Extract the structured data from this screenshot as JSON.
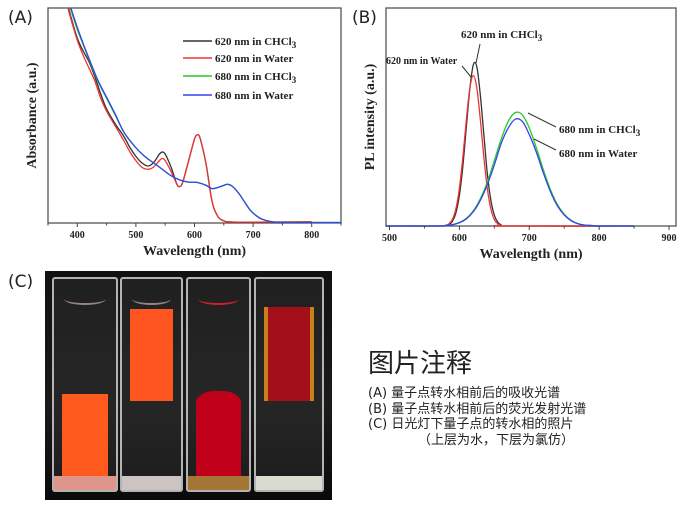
{
  "panels": {
    "a_label": "(A)",
    "b_label": "(B)",
    "c_label": "(C)"
  },
  "chart_data": [
    {
      "type": "line",
      "panel": "(A)",
      "xlabel": "Wavelength (nm)",
      "ylabel": "Absorbance (a.u.)",
      "xlim": [
        350,
        850
      ],
      "ylim": [
        0,
        1
      ],
      "xticks": [
        400,
        500,
        600,
        700,
        800
      ],
      "yticks_labeled": false,
      "grid": false,
      "legend_position": "top-right",
      "series": [
        {
          "name": "620 nm in CHCl",
          "name_sub": "3",
          "color": "#333333",
          "points": [
            [
              385,
              1.0
            ],
            [
              390,
              0.95
            ],
            [
              400,
              0.86
            ],
            [
              410,
              0.8
            ],
            [
              420,
              0.75
            ],
            [
              430,
              0.68
            ],
            [
              440,
              0.6
            ],
            [
              450,
              0.53
            ],
            [
              465,
              0.46
            ],
            [
              480,
              0.4
            ],
            [
              490,
              0.35
            ],
            [
              500,
              0.31
            ],
            [
              510,
              0.28
            ],
            [
              520,
              0.265
            ],
            [
              530,
              0.28
            ],
            [
              540,
              0.32
            ],
            [
              545,
              0.33
            ],
            [
              550,
              0.32
            ],
            [
              560,
              0.26
            ],
            [
              570,
              0.18
            ],
            [
              575,
              0.17
            ],
            [
              580,
              0.19
            ],
            [
              590,
              0.29
            ],
            [
              600,
              0.39
            ],
            [
              605,
              0.41
            ],
            [
              610,
              0.39
            ],
            [
              620,
              0.27
            ],
            [
              630,
              0.1
            ],
            [
              640,
              0.03
            ],
            [
              650,
              0.01
            ],
            [
              660,
              0.005
            ],
            [
              700,
              0.003
            ],
            [
              800,
              0.002
            ]
          ]
        },
        {
          "name": "620 nm in Water",
          "name_sub": "",
          "color": "#ee3333",
          "points": [
            [
              384,
              1.0
            ],
            [
              390,
              0.94
            ],
            [
              400,
              0.85
            ],
            [
              410,
              0.78
            ],
            [
              420,
              0.72
            ],
            [
              430,
              0.66
            ],
            [
              440,
              0.58
            ],
            [
              450,
              0.52
            ],
            [
              465,
              0.45
            ],
            [
              480,
              0.38
            ],
            [
              490,
              0.33
            ],
            [
              500,
              0.29
            ],
            [
              510,
              0.26
            ],
            [
              520,
              0.25
            ],
            [
              530,
              0.26
            ],
            [
              540,
              0.29
            ],
            [
              545,
              0.3
            ],
            [
              550,
              0.29
            ],
            [
              560,
              0.24
            ],
            [
              570,
              0.18
            ],
            [
              575,
              0.17
            ],
            [
              580,
              0.19
            ],
            [
              590,
              0.29
            ],
            [
              600,
              0.39
            ],
            [
              605,
              0.41
            ],
            [
              610,
              0.39
            ],
            [
              620,
              0.27
            ],
            [
              630,
              0.1
            ],
            [
              640,
              0.03
            ],
            [
              650,
              0.01
            ],
            [
              660,
              0.005
            ],
            [
              700,
              0.004
            ],
            [
              800,
              0.006
            ]
          ]
        },
        {
          "name": "680 nm in CHCl",
          "name_sub": "3",
          "color": "#22cc22",
          "points": [
            [
              388,
              1.0
            ],
            [
              400,
              0.9
            ],
            [
              410,
              0.83
            ],
            [
              420,
              0.76
            ],
            [
              435,
              0.66
            ],
            [
              450,
              0.58
            ],
            [
              465,
              0.5
            ],
            [
              480,
              0.42
            ],
            [
              500,
              0.35
            ],
            [
              515,
              0.31
            ],
            [
              530,
              0.28
            ],
            [
              545,
              0.25
            ],
            [
              560,
              0.22
            ],
            [
              575,
              0.2
            ],
            [
              590,
              0.19
            ],
            [
              600,
              0.19
            ],
            [
              610,
              0.185
            ],
            [
              620,
              0.175
            ],
            [
              630,
              0.16
            ],
            [
              640,
              0.165
            ],
            [
              650,
              0.175
            ],
            [
              657,
              0.18
            ],
            [
              665,
              0.17
            ],
            [
              675,
              0.14
            ],
            [
              685,
              0.1
            ],
            [
              695,
              0.06
            ],
            [
              705,
              0.035
            ],
            [
              715,
              0.018
            ],
            [
              730,
              0.007
            ],
            [
              750,
              0.003
            ],
            [
              850,
              0.002
            ]
          ]
        },
        {
          "name": "680 nm in Water",
          "name_sub": "",
          "color": "#3344ee",
          "points": [
            [
              389,
              1.0
            ],
            [
              400,
              0.91
            ],
            [
              410,
              0.835
            ],
            [
              420,
              0.765
            ],
            [
              435,
              0.665
            ],
            [
              450,
              0.585
            ],
            [
              465,
              0.505
            ],
            [
              480,
              0.42
            ],
            [
              500,
              0.35
            ],
            [
              515,
              0.31
            ],
            [
              530,
              0.28
            ],
            [
              545,
              0.25
            ],
            [
              560,
              0.22
            ],
            [
              575,
              0.2
            ],
            [
              590,
              0.19
            ],
            [
              600,
              0.19
            ],
            [
              610,
              0.185
            ],
            [
              620,
              0.175
            ],
            [
              630,
              0.16
            ],
            [
              640,
              0.165
            ],
            [
              650,
              0.175
            ],
            [
              657,
              0.18
            ],
            [
              665,
              0.17
            ],
            [
              675,
              0.14
            ],
            [
              685,
              0.1
            ],
            [
              695,
              0.06
            ],
            [
              705,
              0.035
            ],
            [
              715,
              0.018
            ],
            [
              730,
              0.007
            ],
            [
              750,
              0.003
            ],
            [
              850,
              0.002
            ]
          ]
        }
      ]
    },
    {
      "type": "line",
      "panel": "(B)",
      "xlabel": "Wavelength (nm)",
      "ylabel": "PL intensity (a.u.)",
      "xlim": [
        495,
        910
      ],
      "ylim": [
        0,
        1
      ],
      "xticks": [
        500,
        600,
        700,
        800,
        900
      ],
      "yticks_labeled": false,
      "grid": false,
      "series": [
        {
          "name": "620 nm in CHCl",
          "name_sub": "3",
          "color": "#333333",
          "points": [
            [
              495,
              0
            ],
            [
              575,
              0
            ],
            [
              580,
              0.002
            ],
            [
              585,
              0.006
            ],
            [
              590,
              0.021
            ],
            [
              595,
              0.06
            ],
            [
              600,
              0.14
            ],
            [
              605,
              0.275
            ],
            [
              610,
              0.455
            ],
            [
              615,
              0.63
            ],
            [
              620,
              0.74
            ],
            [
              625,
              0.73
            ],
            [
              630,
              0.6
            ],
            [
              635,
              0.42
            ],
            [
              640,
              0.24
            ],
            [
              645,
              0.12
            ],
            [
              650,
              0.05
            ],
            [
              655,
              0.017
            ],
            [
              660,
              0.005
            ],
            [
              665,
              0
            ],
            [
              850,
              0
            ]
          ]
        },
        {
          "name": "620 nm in Water",
          "name_sub": "",
          "color": "#ee3333",
          "points": [
            [
              495,
              0
            ],
            [
              575,
              0
            ],
            [
              580,
              0.003
            ],
            [
              585,
              0.01
            ],
            [
              590,
              0.03
            ],
            [
              595,
              0.079
            ],
            [
              600,
              0.172
            ],
            [
              605,
              0.316
            ],
            [
              610,
              0.488
            ],
            [
              615,
              0.633
            ],
            [
              620,
              0.69
            ],
            [
              625,
              0.633
            ],
            [
              630,
              0.488
            ],
            [
              635,
              0.316
            ],
            [
              640,
              0.172
            ],
            [
              645,
              0.079
            ],
            [
              650,
              0.03
            ],
            [
              655,
              0.01
            ],
            [
              660,
              0.003
            ],
            [
              665,
              0
            ],
            [
              850,
              0
            ]
          ]
        },
        {
          "name": "680 nm in CHCl",
          "name_sub": "3",
          "color": "#22cc22",
          "points": [
            [
              495,
              0
            ],
            [
              570,
              0
            ],
            [
              580,
              0.002
            ],
            [
              590,
              0.006
            ],
            [
              600,
              0.016
            ],
            [
              610,
              0.035
            ],
            [
              620,
              0.07
            ],
            [
              630,
              0.125
            ],
            [
              640,
              0.2
            ],
            [
              650,
              0.3
            ],
            [
              660,
              0.4
            ],
            [
              670,
              0.48
            ],
            [
              680,
              0.52
            ],
            [
              690,
              0.51
            ],
            [
              700,
              0.45
            ],
            [
              710,
              0.36
            ],
            [
              720,
              0.26
            ],
            [
              730,
              0.17
            ],
            [
              740,
              0.1
            ],
            [
              750,
              0.054
            ],
            [
              760,
              0.026
            ],
            [
              770,
              0.011
            ],
            [
              780,
              0.004
            ],
            [
              790,
              0.002
            ],
            [
              800,
              0
            ],
            [
              850,
              0
            ]
          ]
        },
        {
          "name": "680 nm in Water",
          "name_sub": "",
          "color": "#3344ee",
          "points": [
            [
              495,
              0
            ],
            [
              570,
              0
            ],
            [
              580,
              0.002
            ],
            [
              590,
              0.006
            ],
            [
              600,
              0.015
            ],
            [
              610,
              0.033
            ],
            [
              620,
              0.066
            ],
            [
              630,
              0.118
            ],
            [
              640,
              0.19
            ],
            [
              650,
              0.28
            ],
            [
              660,
              0.38
            ],
            [
              670,
              0.45
            ],
            [
              680,
              0.49
            ],
            [
              690,
              0.48
            ],
            [
              700,
              0.42
            ],
            [
              710,
              0.34
            ],
            [
              720,
              0.245
            ],
            [
              730,
              0.16
            ],
            [
              740,
              0.094
            ],
            [
              750,
              0.051
            ],
            [
              760,
              0.024
            ],
            [
              770,
              0.01
            ],
            [
              780,
              0.004
            ],
            [
              790,
              0.002
            ],
            [
              800,
              0
            ],
            [
              850,
              0
            ]
          ]
        }
      ]
    }
  ],
  "photo": {
    "description_colors": {
      "orange": "#ff5a1e",
      "dark_red": "#c0001a",
      "brown_red": "#a3101a"
    }
  },
  "notes": {
    "title": "图片注释",
    "lines": [
      "(A) 量子点转水相前后的吸收光谱",
      "(B) 量子点转水相前后的荧光发射光谱",
      "(C) 日光灯下量子点的转水相的照片",
      "（上层为水，下层为氯仿）"
    ]
  }
}
